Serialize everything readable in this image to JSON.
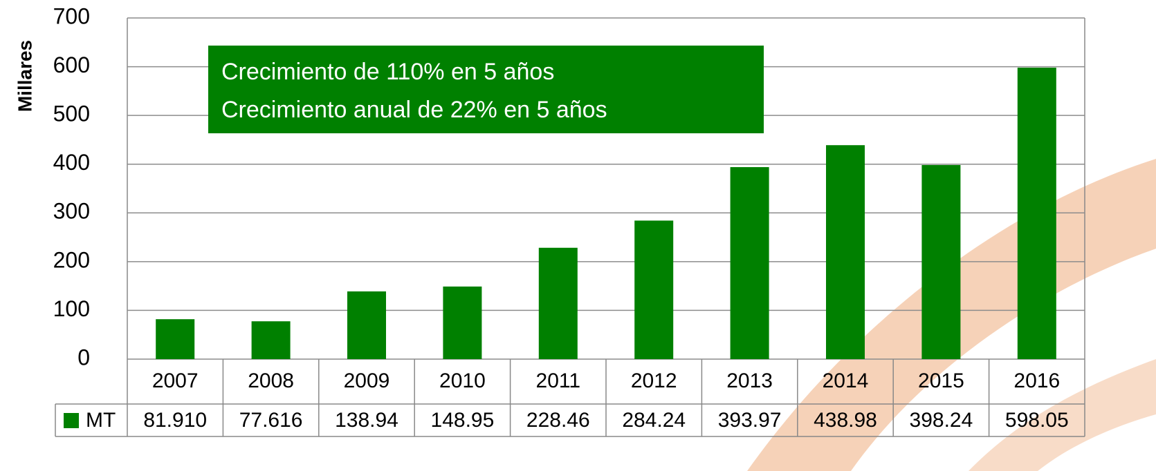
{
  "chart_data": {
    "type": "bar",
    "y_label": "Millares",
    "annotations": [
      "Crecimiento de 110% en 5 años",
      "Crecimiento anual de 22% en 5 años"
    ],
    "categories": [
      "2007",
      "2008",
      "2009",
      "2010",
      "2011",
      "2012",
      "2013",
      "2014",
      "2015",
      "2016"
    ],
    "series": [
      {
        "name": "MT",
        "color": "#008000",
        "values": [
          81.91,
          77.616,
          138.94,
          148.95,
          228.46,
          284.24,
          393.97,
          438.98,
          398.24,
          598.05
        ],
        "value_labels": [
          "81.910",
          "77.616",
          "138.94",
          "148.95",
          "228.46",
          "284.24",
          "393.97",
          "438.98",
          "398.24",
          "598.05"
        ]
      }
    ],
    "ylim": [
      0,
      700
    ],
    "yticks": [
      0,
      100,
      200,
      300,
      400,
      500,
      600,
      700
    ],
    "grid": true
  }
}
